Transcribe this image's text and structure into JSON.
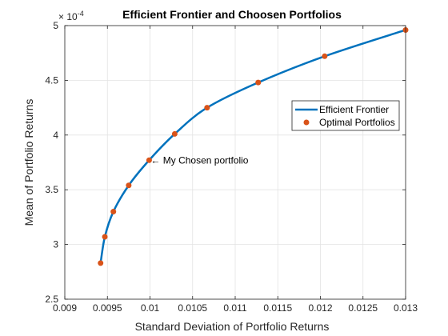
{
  "chart_data": {
    "type": "line",
    "title": "Efficient Frontier and Choosen Portfolios",
    "xlabel": "Standard Deviation of Portfolio Returns",
    "ylabel": "Mean of Portfolio Returns",
    "xlim": [
      0.009,
      0.013
    ],
    "ylim": [
      2.5,
      5
    ],
    "y_exponent": "× 10",
    "y_exponent_power": "-4",
    "x_ticks": [
      "0.009",
      "0.0095",
      "0.01",
      "0.0105",
      "0.011",
      "0.0115",
      "0.012",
      "0.0125",
      "0.013"
    ],
    "x_tick_values": [
      0.009,
      0.0095,
      0.01,
      0.0105,
      0.011,
      0.0115,
      0.012,
      0.0125,
      0.013
    ],
    "y_ticks": [
      "2.5",
      "3",
      "3.5",
      "4",
      "4.5",
      "5"
    ],
    "y_tick_values": [
      2.5,
      3,
      3.5,
      4,
      4.5,
      5
    ],
    "grid": true,
    "legend": "right",
    "series": [
      {
        "name": "Efficient Frontier",
        "type": "line",
        "color": "#0072BD",
        "x": [
          0.00942,
          0.00947,
          0.00957,
          0.00975,
          0.00999,
          0.01029,
          0.01067,
          0.01127,
          0.01205,
          0.013
        ],
        "y": [
          2.83,
          3.07,
          3.3,
          3.54,
          3.77,
          4.01,
          4.25,
          4.48,
          4.72,
          4.96
        ]
      },
      {
        "name": "Optimal Portfolios",
        "type": "scatter",
        "color": "#D95319",
        "x": [
          0.00942,
          0.00947,
          0.00957,
          0.00975,
          0.00999,
          0.01029,
          0.01067,
          0.01127,
          0.01205,
          0.013
        ],
        "y": [
          2.83,
          3.07,
          3.3,
          3.54,
          3.77,
          4.01,
          4.25,
          4.48,
          4.72,
          4.96
        ]
      }
    ],
    "annotations": [
      {
        "text": "← My Chosen portfolio",
        "x": 0.00999,
        "y": 3.77
      }
    ]
  }
}
